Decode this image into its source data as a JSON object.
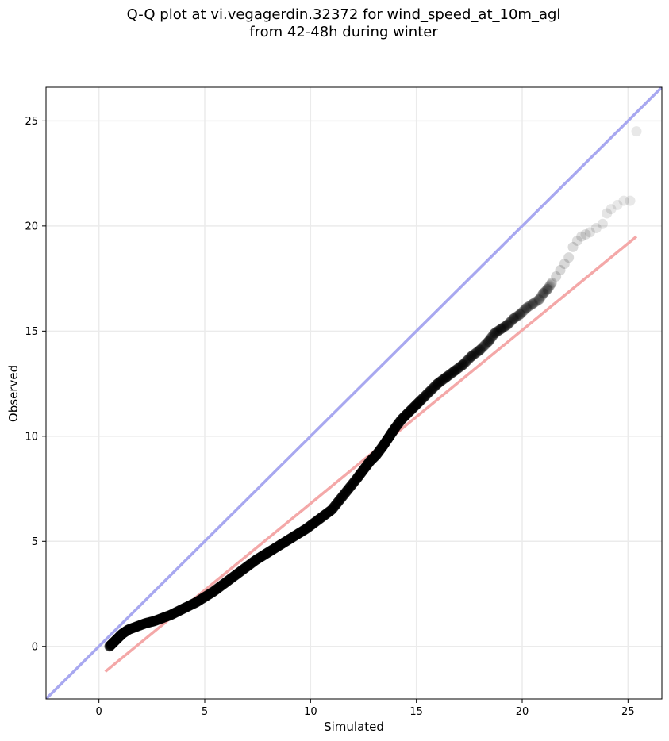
{
  "figure": {
    "title_line1": "Q-Q plot at vi.vegagerdin.32372 for wind_speed_at_10m_agl",
    "title_line2": "from 42-48h during winter"
  },
  "chart_data": {
    "type": "scatter",
    "title": "Q-Q plot at vi.vegagerdin.32372 for wind_speed_at_10m_agl from 42-48h during winter",
    "xlabel": "Simulated",
    "ylabel": "Observed",
    "xlim": [
      -2.5,
      26.6
    ],
    "ylim": [
      -2.5,
      26.6
    ],
    "xticks": [
      0,
      5,
      10,
      15,
      20,
      25
    ],
    "yticks": [
      0,
      5,
      10,
      15,
      20,
      25
    ],
    "grid": true,
    "colors": {
      "points": "#000000",
      "identity_line": "#a8a8f0",
      "fit_line": "#f4a8a8"
    },
    "identity_line": {
      "x": [
        -2.5,
        26.6
      ],
      "y": [
        -2.5,
        26.6
      ]
    },
    "fit_line": {
      "x": [
        0.3,
        25.4
      ],
      "y": [
        -1.2,
        19.5
      ]
    },
    "quantiles": {
      "x": [
        0.5,
        0.7,
        0.9,
        1.1,
        1.4,
        1.8,
        2.2,
        2.6,
        3.0,
        3.4,
        3.8,
        4.2,
        4.6,
        5.0,
        5.4,
        5.8,
        6.2,
        6.6,
        7.0,
        7.4,
        7.8,
        8.2,
        8.6,
        9.0,
        9.4,
        9.8,
        10.2,
        10.6,
        11.0,
        11.4,
        11.8,
        12.2,
        12.5,
        12.8,
        13.1,
        13.4,
        13.6,
        13.8,
        14.0,
        14.3,
        14.6,
        14.9,
        15.2,
        15.6,
        16.0,
        16.4,
        16.8,
        17.2,
        17.6,
        18.0,
        18.4,
        18.7,
        19.0,
        19.3,
        19.6,
        19.9,
        20.2,
        20.5,
        20.8,
        21.0,
        21.2,
        21.4,
        21.6,
        21.8,
        22.0,
        22.2,
        22.4,
        22.6,
        22.8,
        23.0,
        23.2,
        23.5,
        23.8,
        24.0,
        24.2,
        24.5,
        24.8,
        25.1,
        25.4
      ],
      "y": [
        0.0,
        0.2,
        0.4,
        0.6,
        0.8,
        0.95,
        1.1,
        1.2,
        1.35,
        1.5,
        1.7,
        1.9,
        2.1,
        2.35,
        2.6,
        2.9,
        3.2,
        3.5,
        3.8,
        4.1,
        4.35,
        4.6,
        4.85,
        5.1,
        5.35,
        5.6,
        5.9,
        6.2,
        6.5,
        7.0,
        7.5,
        8.0,
        8.4,
        8.8,
        9.1,
        9.5,
        9.8,
        10.1,
        10.4,
        10.8,
        11.1,
        11.4,
        11.7,
        12.1,
        12.5,
        12.8,
        13.1,
        13.4,
        13.8,
        14.1,
        14.5,
        14.9,
        15.1,
        15.3,
        15.6,
        15.8,
        16.1,
        16.3,
        16.5,
        16.8,
        17.0,
        17.3,
        17.6,
        17.9,
        18.2,
        18.5,
        19.0,
        19.3,
        19.5,
        19.6,
        19.7,
        19.9,
        20.1,
        20.6,
        20.8,
        21.0,
        21.2,
        21.2,
        24.5
      ]
    }
  }
}
